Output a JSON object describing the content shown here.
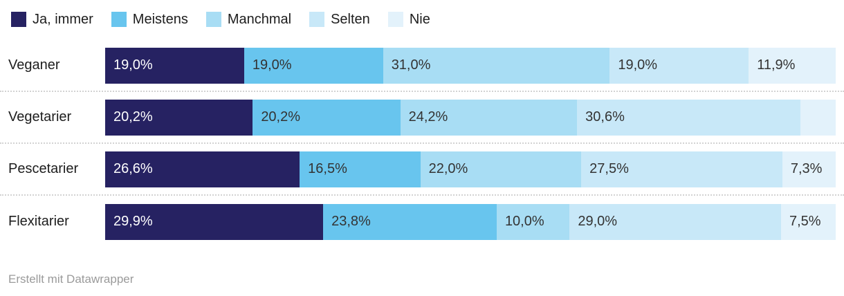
{
  "colors": {
    "background": "#ffffff",
    "row_label": "#1d1d1d",
    "segment_label_dark": "#333333",
    "segment_label_light": "#ffffff",
    "separator": "#d2d2d2",
    "footer_text": "#9a9a9a"
  },
  "chart_data": {
    "type": "bar",
    "variant": "stacked-horizontal-100-percent",
    "legend_position": "top",
    "value_format": "german-decimal-percent",
    "grid": false,
    "categories": [
      "Veganer",
      "Vegetarier",
      "Pescetarier",
      "Flexitarier"
    ],
    "series": [
      {
        "name": "Ja, immer",
        "color": "#262262",
        "label_color": "#ffffff",
        "values": [
          19.0,
          20.2,
          26.6,
          29.9
        ]
      },
      {
        "name": "Meistens",
        "color": "#68c5ee",
        "label_color": "#333333",
        "values": [
          19.0,
          20.2,
          16.5,
          23.8
        ]
      },
      {
        "name": "Manchmal",
        "color": "#a8ddf4",
        "label_color": "#333333",
        "values": [
          31.0,
          24.2,
          22.0,
          10.0
        ]
      },
      {
        "name": "Selten",
        "color": "#c8e8f8",
        "label_color": "#333333",
        "values": [
          19.0,
          30.6,
          27.5,
          29.0
        ]
      },
      {
        "name": "Nie",
        "color": "#e3f2fb",
        "label_color": "#333333",
        "values": [
          11.9,
          4.8,
          7.3,
          7.5
        ]
      }
    ],
    "segment_labels": [
      [
        "19,0%",
        "19,0%",
        "31,0%",
        "19,0%",
        "11,9%"
      ],
      [
        "20,2%",
        "20,2%",
        "24,2%",
        "30,6%",
        ""
      ],
      [
        "26,6%",
        "16,5%",
        "22,0%",
        "27,5%",
        "7,3%"
      ],
      [
        "29,9%",
        "23,8%",
        "10,0%",
        "29,0%",
        "7,5%"
      ]
    ]
  },
  "footer": {
    "attribution": "Erstellt mit Datawrapper"
  }
}
